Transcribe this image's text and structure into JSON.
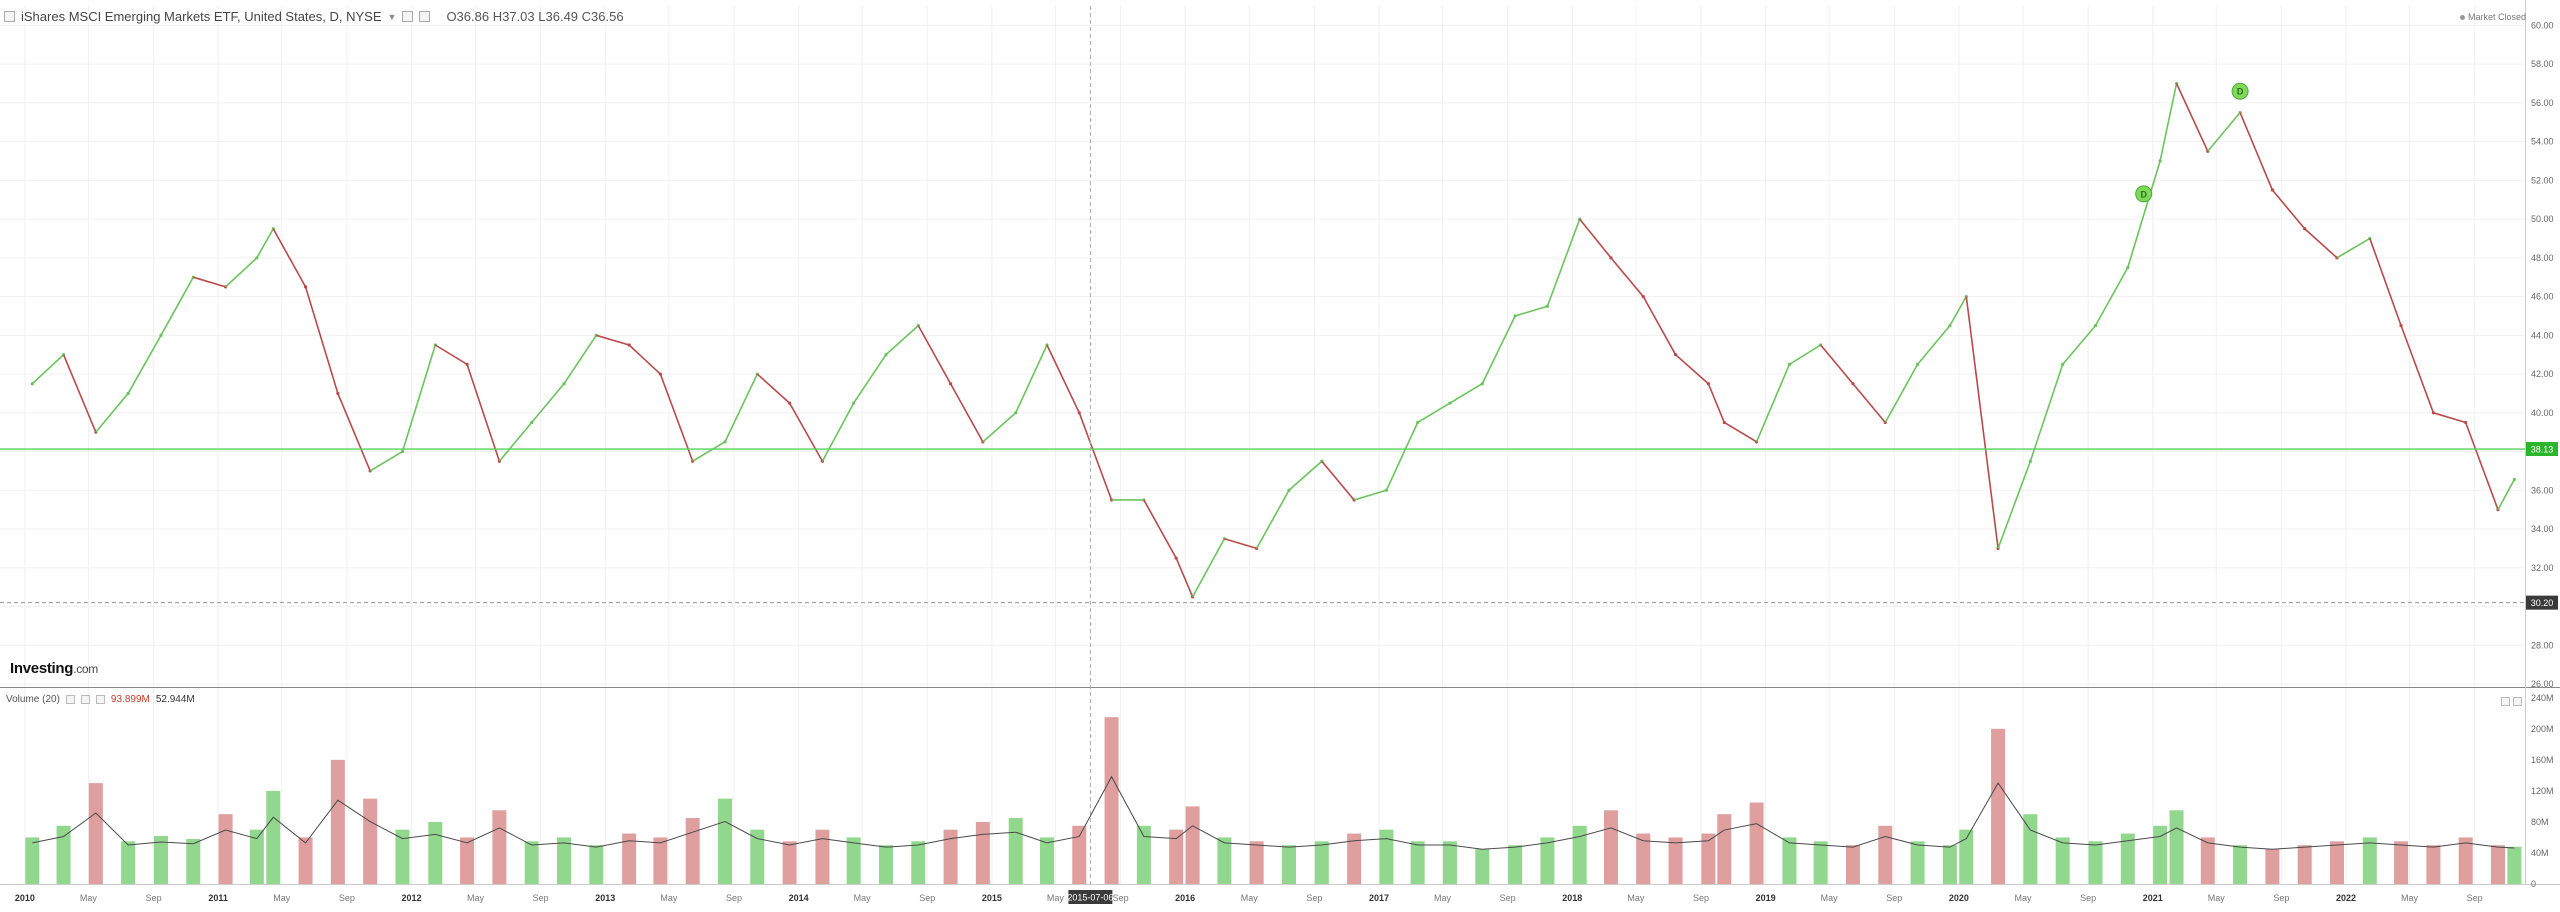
{
  "header": {
    "instrument": "iShares MSCI Emerging Markets ETF, United States, D, NYSE",
    "open": "O36.86",
    "high": "H37.03",
    "low": "L36.49",
    "close": "C36.56",
    "status": "Market Closed"
  },
  "volume_legend": {
    "label": "Volume (20)",
    "value1": "93.899M",
    "value2": "52.944M"
  },
  "logo": {
    "brand": "Investing",
    "suffix": ".com"
  },
  "price_axis_labels": [
    "60.00",
    "58.00",
    "56.00",
    "54.00",
    "52.00",
    "50.00",
    "48.00",
    "46.00",
    "44.00",
    "42.00",
    "40.00",
    "38.00",
    "36.00",
    "34.00",
    "32.00",
    "30.00",
    "28.00",
    "26.00"
  ],
  "price_tags": {
    "green_line": "38.13",
    "dashed_line": "30.20"
  },
  "volume_axis_labels": [
    "240M",
    "200M",
    "160M",
    "120M",
    "80M",
    "40M",
    "0"
  ],
  "crosshair_date": "2015-07-06",
  "colors": {
    "up": "#6bc35d",
    "down": "#b94a4a",
    "line": "#58d15a",
    "vol_up": "#7fd07a",
    "vol_down": "#d98e8e",
    "marker": "#7ed957"
  },
  "chart_data": {
    "type": "line",
    "title": "iShares MSCI Emerging Markets ETF, United States, D, NYSE",
    "x_tick_labels": [
      "2010",
      "May",
      "Sep",
      "2011",
      "May",
      "Sep",
      "2012",
      "May",
      "Sep",
      "2013",
      "May",
      "Sep",
      "2014",
      "May",
      "Sep",
      "2015",
      "May",
      "Sep",
      "2016",
      "May",
      "Sep",
      "2017",
      "May",
      "Sep",
      "2018",
      "May",
      "Sep",
      "2019",
      "May",
      "Sep",
      "2020",
      "May",
      "Sep",
      "2021",
      "May",
      "Sep",
      "2022",
      "May",
      "Sep"
    ],
    "ylim": [
      26,
      61
    ],
    "horizontal_levels": [
      38.13,
      30.2
    ],
    "dividend_markers": [
      {
        "date": "2020-12",
        "value": 51.3,
        "label": "D"
      },
      {
        "date": "2021-06",
        "value": 56.6,
        "label": "D"
      }
    ],
    "series": [
      {
        "x": [
          "2010-01",
          "2010-03",
          "2010-05",
          "2010-07",
          "2010-09",
          "2010-11",
          "2011-01",
          "2011-03",
          "2011-04",
          "2011-06",
          "2011-08",
          "2011-10",
          "2011-12",
          "2012-02",
          "2012-04",
          "2012-06",
          "2012-08",
          "2012-10",
          "2012-12",
          "2013-02",
          "2013-04",
          "2013-06",
          "2013-08",
          "2013-10",
          "2013-12",
          "2014-02",
          "2014-04",
          "2014-06",
          "2014-08",
          "2014-10",
          "2014-12",
          "2015-02",
          "2015-04",
          "2015-06",
          "2015-08",
          "2015-10",
          "2015-12",
          "2016-01",
          "2016-03",
          "2016-05",
          "2016-07",
          "2016-09",
          "2016-11",
          "2017-01",
          "2017-03",
          "2017-05",
          "2017-07",
          "2017-09",
          "2017-11",
          "2018-01",
          "2018-03",
          "2018-05",
          "2018-07",
          "2018-09",
          "2018-10",
          "2018-12",
          "2019-02",
          "2019-04",
          "2019-06",
          "2019-08",
          "2019-10",
          "2019-12",
          "2020-01",
          "2020-03",
          "2020-05",
          "2020-07",
          "2020-09",
          "2020-11",
          "2021-01",
          "2021-02",
          "2021-04",
          "2021-06",
          "2021-08",
          "2021-10",
          "2021-12",
          "2022-02",
          "2022-04",
          "2022-06",
          "2022-08",
          "2022-10",
          "2022-11"
        ],
        "values": [
          41.5,
          43.0,
          39.0,
          41.0,
          44.0,
          47.0,
          46.5,
          48.0,
          49.5,
          46.5,
          41.0,
          37.0,
          38.0,
          43.5,
          42.5,
          37.5,
          39.5,
          41.5,
          44.0,
          43.5,
          42.0,
          37.5,
          38.5,
          42.0,
          40.5,
          37.5,
          40.5,
          43.0,
          44.5,
          41.5,
          38.5,
          40.0,
          43.5,
          40.0,
          35.5,
          35.5,
          32.5,
          30.5,
          33.5,
          33.0,
          36.0,
          37.5,
          35.5,
          36.0,
          39.5,
          40.5,
          41.5,
          45.0,
          45.5,
          50.0,
          48.0,
          46.0,
          43.0,
          41.5,
          39.5,
          38.5,
          42.5,
          43.5,
          41.5,
          39.5,
          42.5,
          44.5,
          46.0,
          33.0,
          37.5,
          42.5,
          44.5,
          47.5,
          53.0,
          57.0,
          53.5,
          55.5,
          51.5,
          49.5,
          48.0,
          49.0,
          44.5,
          40.0,
          39.5,
          35.0,
          36.56
        ],
        "volume_values_M": [
          60,
          75,
          130,
          55,
          62,
          58,
          90,
          70,
          120,
          60,
          160,
          110,
          70,
          80,
          60,
          95,
          55,
          60,
          50,
          65,
          60,
          85,
          110,
          70,
          55,
          70,
          60,
          50,
          55,
          70,
          80,
          85,
          60,
          75,
          215,
          75,
          70,
          100,
          60,
          55,
          50,
          55,
          65,
          70,
          55,
          55,
          45,
          50,
          60,
          75,
          95,
          65,
          60,
          65,
          90,
          105,
          60,
          55,
          50,
          75,
          55,
          50,
          70,
          200,
          90,
          60,
          55,
          65,
          75,
          95,
          60,
          50,
          45,
          50,
          55,
          60,
          55,
          50,
          60,
          50,
          48
        ]
      }
    ]
  }
}
